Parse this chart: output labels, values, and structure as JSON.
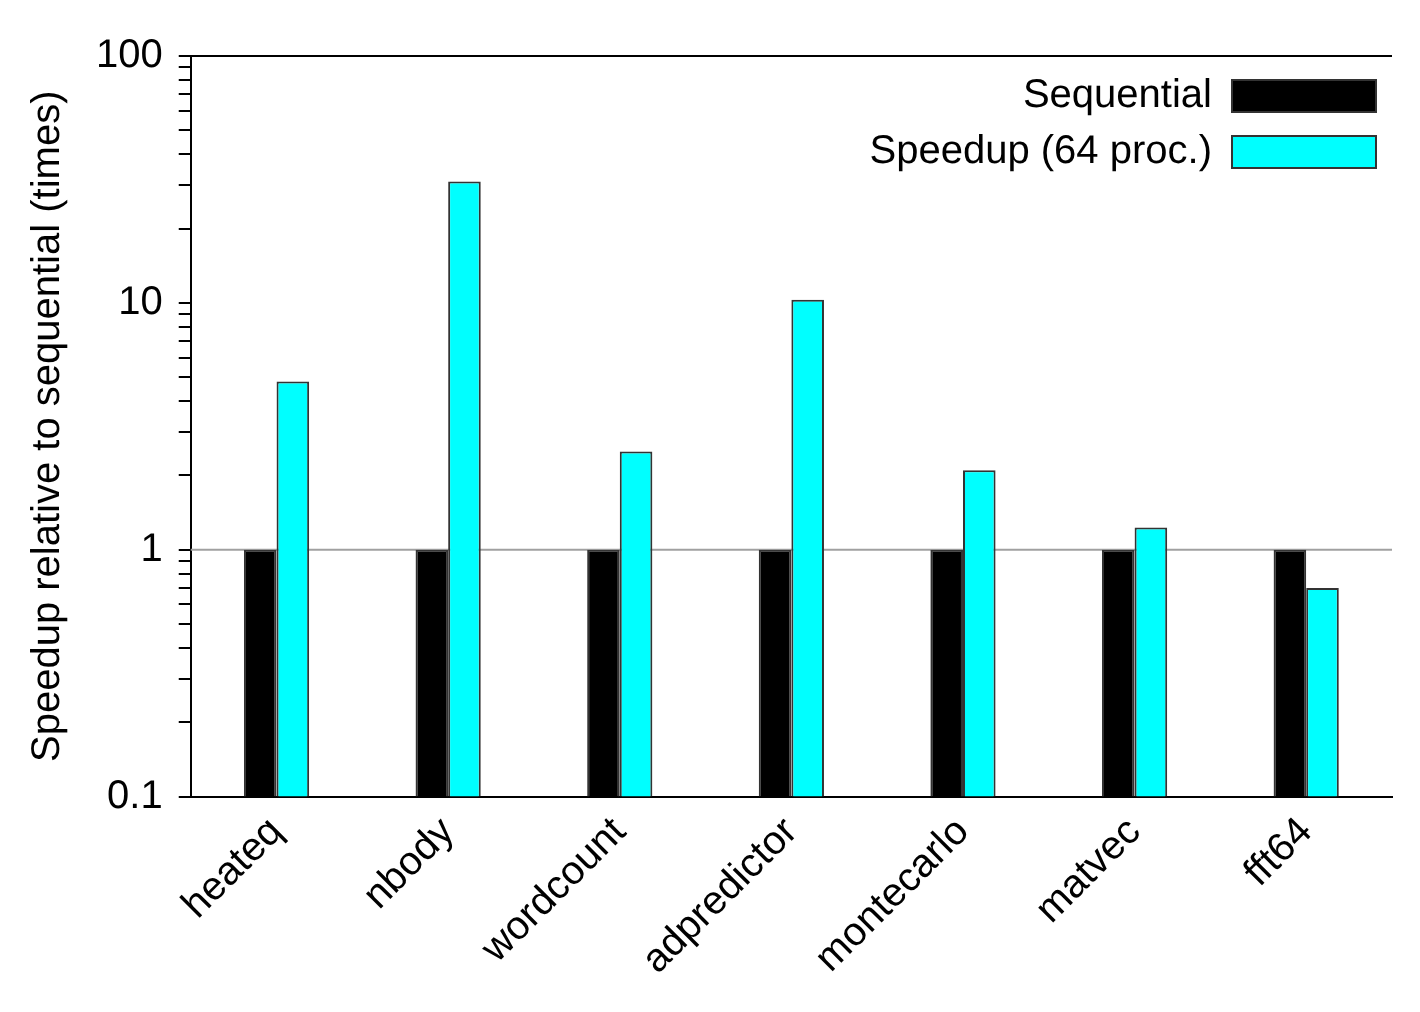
{
  "chart_data": {
    "type": "bar",
    "ylabel": "Speedup relative to sequential (times)",
    "categories": [
      "heateq",
      "nbody",
      "wordcount",
      "adpredictor",
      "montecarlo",
      "matvec",
      "fft64"
    ],
    "series": [
      {
        "name": "Sequential",
        "color": "#000000",
        "values": [
          1,
          1,
          1,
          1,
          1,
          1,
          1
        ]
      },
      {
        "name": "Speedup (64 proc.)",
        "color": "#00ffff",
        "values": [
          4.8,
          31,
          2.5,
          10.3,
          2.1,
          1.23,
          0.7
        ]
      }
    ],
    "log": true,
    "ylim": [
      0.1,
      100
    ],
    "yticks": [
      0.1,
      {
        "value": 0.2,
        "label": null
      },
      {
        "value": 0.3,
        "label": null
      },
      {
        "value": 0.4,
        "label": null
      },
      {
        "value": 0.5,
        "label": null
      },
      {
        "value": 0.6,
        "label": null
      },
      {
        "value": 0.7,
        "label": null
      },
      {
        "value": 0.8,
        "label": null
      },
      {
        "value": 0.9,
        "label": null
      },
      1,
      {
        "value": 2,
        "label": null
      },
      {
        "value": 3,
        "label": null
      },
      {
        "value": 4,
        "label": null
      },
      {
        "value": 5,
        "label": null
      },
      {
        "value": 6,
        "label": null
      },
      {
        "value": 7,
        "label": null
      },
      {
        "value": 8,
        "label": null
      },
      {
        "value": 9,
        "label": null
      },
      10,
      {
        "value": 20,
        "label": null
      },
      {
        "value": 30,
        "label": null
      },
      {
        "value": 40,
        "label": null
      },
      {
        "value": 50,
        "label": null
      },
      {
        "value": 60,
        "label": null
      },
      {
        "value": 70,
        "label": null
      },
      {
        "value": 80,
        "label": null
      },
      {
        "value": 90,
        "label": null
      },
      100
    ],
    "ref_lines": [
      {
        "axis": "y",
        "value": 1,
        "color": "#a0a0a0"
      }
    ],
    "grid": false,
    "legend": "top right"
  }
}
